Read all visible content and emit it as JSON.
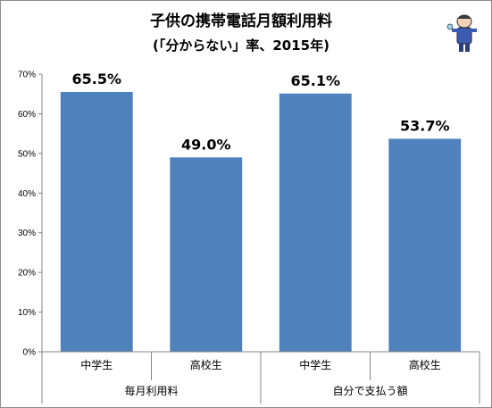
{
  "chart_data": {
    "type": "bar",
    "title": "子供の携帯電話月額利用料",
    "subtitle": "(「分からない」率、2015年)",
    "categories": [
      "中学生",
      "高校生",
      "中学生",
      "高校生"
    ],
    "groups": [
      {
        "label": "毎月利用料",
        "span": [
          0,
          1
        ]
      },
      {
        "label": "自分で支払う額",
        "span": [
          2,
          3
        ]
      }
    ],
    "values": [
      65.5,
      49.0,
      65.1,
      53.7
    ],
    "data_labels": [
      "65.5%",
      "49.0%",
      "65.1%",
      "53.7%"
    ],
    "y_ticks": [
      "0%",
      "10%",
      "20%",
      "30%",
      "40%",
      "50%",
      "60%",
      "70%"
    ],
    "ylim": [
      0,
      70
    ],
    "bar_color": "#4f81bd",
    "grid": false,
    "legend": "none"
  },
  "decoration": {
    "mascot_icon": "mascot-figure-icon"
  }
}
